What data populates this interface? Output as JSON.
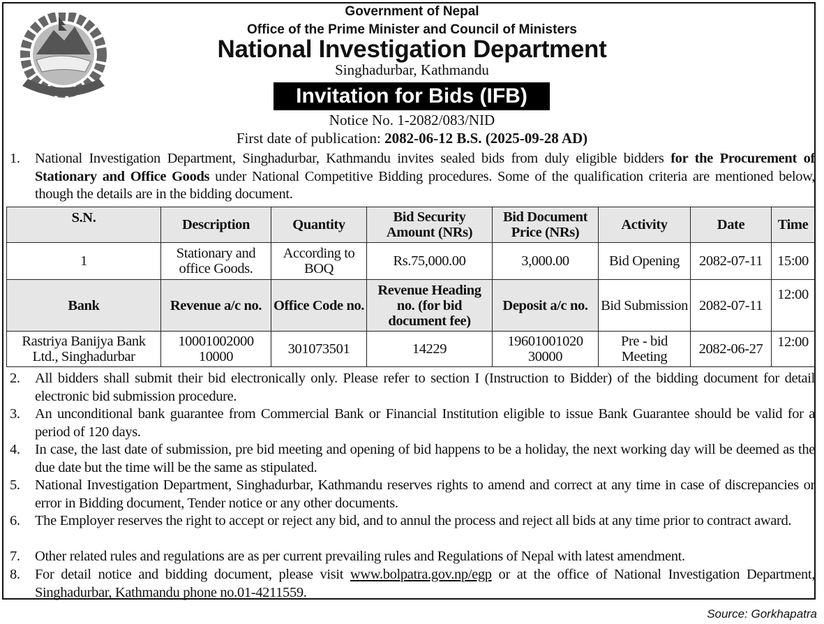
{
  "header": {
    "line1": "Government of Nepal",
    "line2": "Office of the Prime Minister and Council of Ministers",
    "department": "National Investigation Department",
    "address": "Singhadurbar, Kathmandu",
    "title": "Invitation for Bids (IFB)",
    "notice_no": "Notice No. 1-2082/083/NID",
    "publication_label": "First date of publication: ",
    "publication_date": "2082-06-12 B.S. (2025-09-28 AD)"
  },
  "logo": {
    "name": "Emblem of Nepal"
  },
  "item1": {
    "num": "1.",
    "a": "National Investigation Department, Singhadurbar, Kathmandu invites sealed bids from duly eligible bidders ",
    "bold": "for the Procurement of Stationary and Office Goods",
    "b": " under National Competitive Bidding procedures. Some of the qualification criteria are mentioned below, though the details are in the bidding document."
  },
  "table": {
    "header1": [
      "S.N.",
      "Description",
      "Quantity",
      "Bid Security Amount (NRs)",
      "Bid Document Price (NRs)",
      "Activity",
      "Date",
      "Time"
    ],
    "row1": [
      "1",
      "Stationary and office Goods.",
      "According to BOQ",
      "Rs.75,000.00",
      "3,000.00",
      "Bid Opening",
      "2082-07-11",
      "15:00"
    ],
    "header2": [
      "Bank",
      "Revenue a/c no.",
      "Office Code no.",
      "Revenue Heading no. (for bid document fee)",
      "Deposit a/c no."
    ],
    "row2_activity": [
      "Bid Submission",
      "2082-07-11",
      "12:00"
    ],
    "row3": [
      "Rastriya Banijya Bank Ltd., Singhadurbar",
      "10001002000 10000",
      "301073501",
      "14229",
      "19601001020 30000",
      "Pre - bid Meeting",
      "2082-06-27",
      "12:00"
    ]
  },
  "items": [
    {
      "num": "2.",
      "text": "All bidders shall submit their bid electronically only. Please refer to section I (Instruction to Bidder) of the bidding document for detail electronic bid submission procedure."
    },
    {
      "num": "3.",
      "text": "An unconditional bank guarantee from Commercial Bank or Financial Institution eligible to issue Bank Guarantee should be valid for a period of 120 days."
    },
    {
      "num": "4.",
      "text": "In case, the last date of submission, pre bid meeting and opening of bid happens to be a holiday, the next working day will be deemed as the due date but the time will be the same as stipulated."
    },
    {
      "num": "5.",
      "text": "National Investigation Department, Singhadurbar, Kathmandu reserves rights to amend and correct at any time in case of discrepancies or error in Bidding document, Tender notice or any other documents."
    },
    {
      "num": "6.",
      "text": "The Employer reserves the right to accept or reject any bid, and to annul the process and reject all bids at any time prior to contract award."
    },
    {
      "num": "7.",
      "text": "Other related rules and regulations are as per current prevailing rules and Regulations of Nepal with latest amendment."
    }
  ],
  "item8": {
    "num": "8.",
    "a": "For detail notice and bidding document, please visit ",
    "link": "www.bolpatra.gov.np/egp",
    "b": " or at the office of National Investigation Department, Singhadurbar, Kathmandu phone no.01-4211559."
  },
  "source": "Source: Gorkhapatra"
}
